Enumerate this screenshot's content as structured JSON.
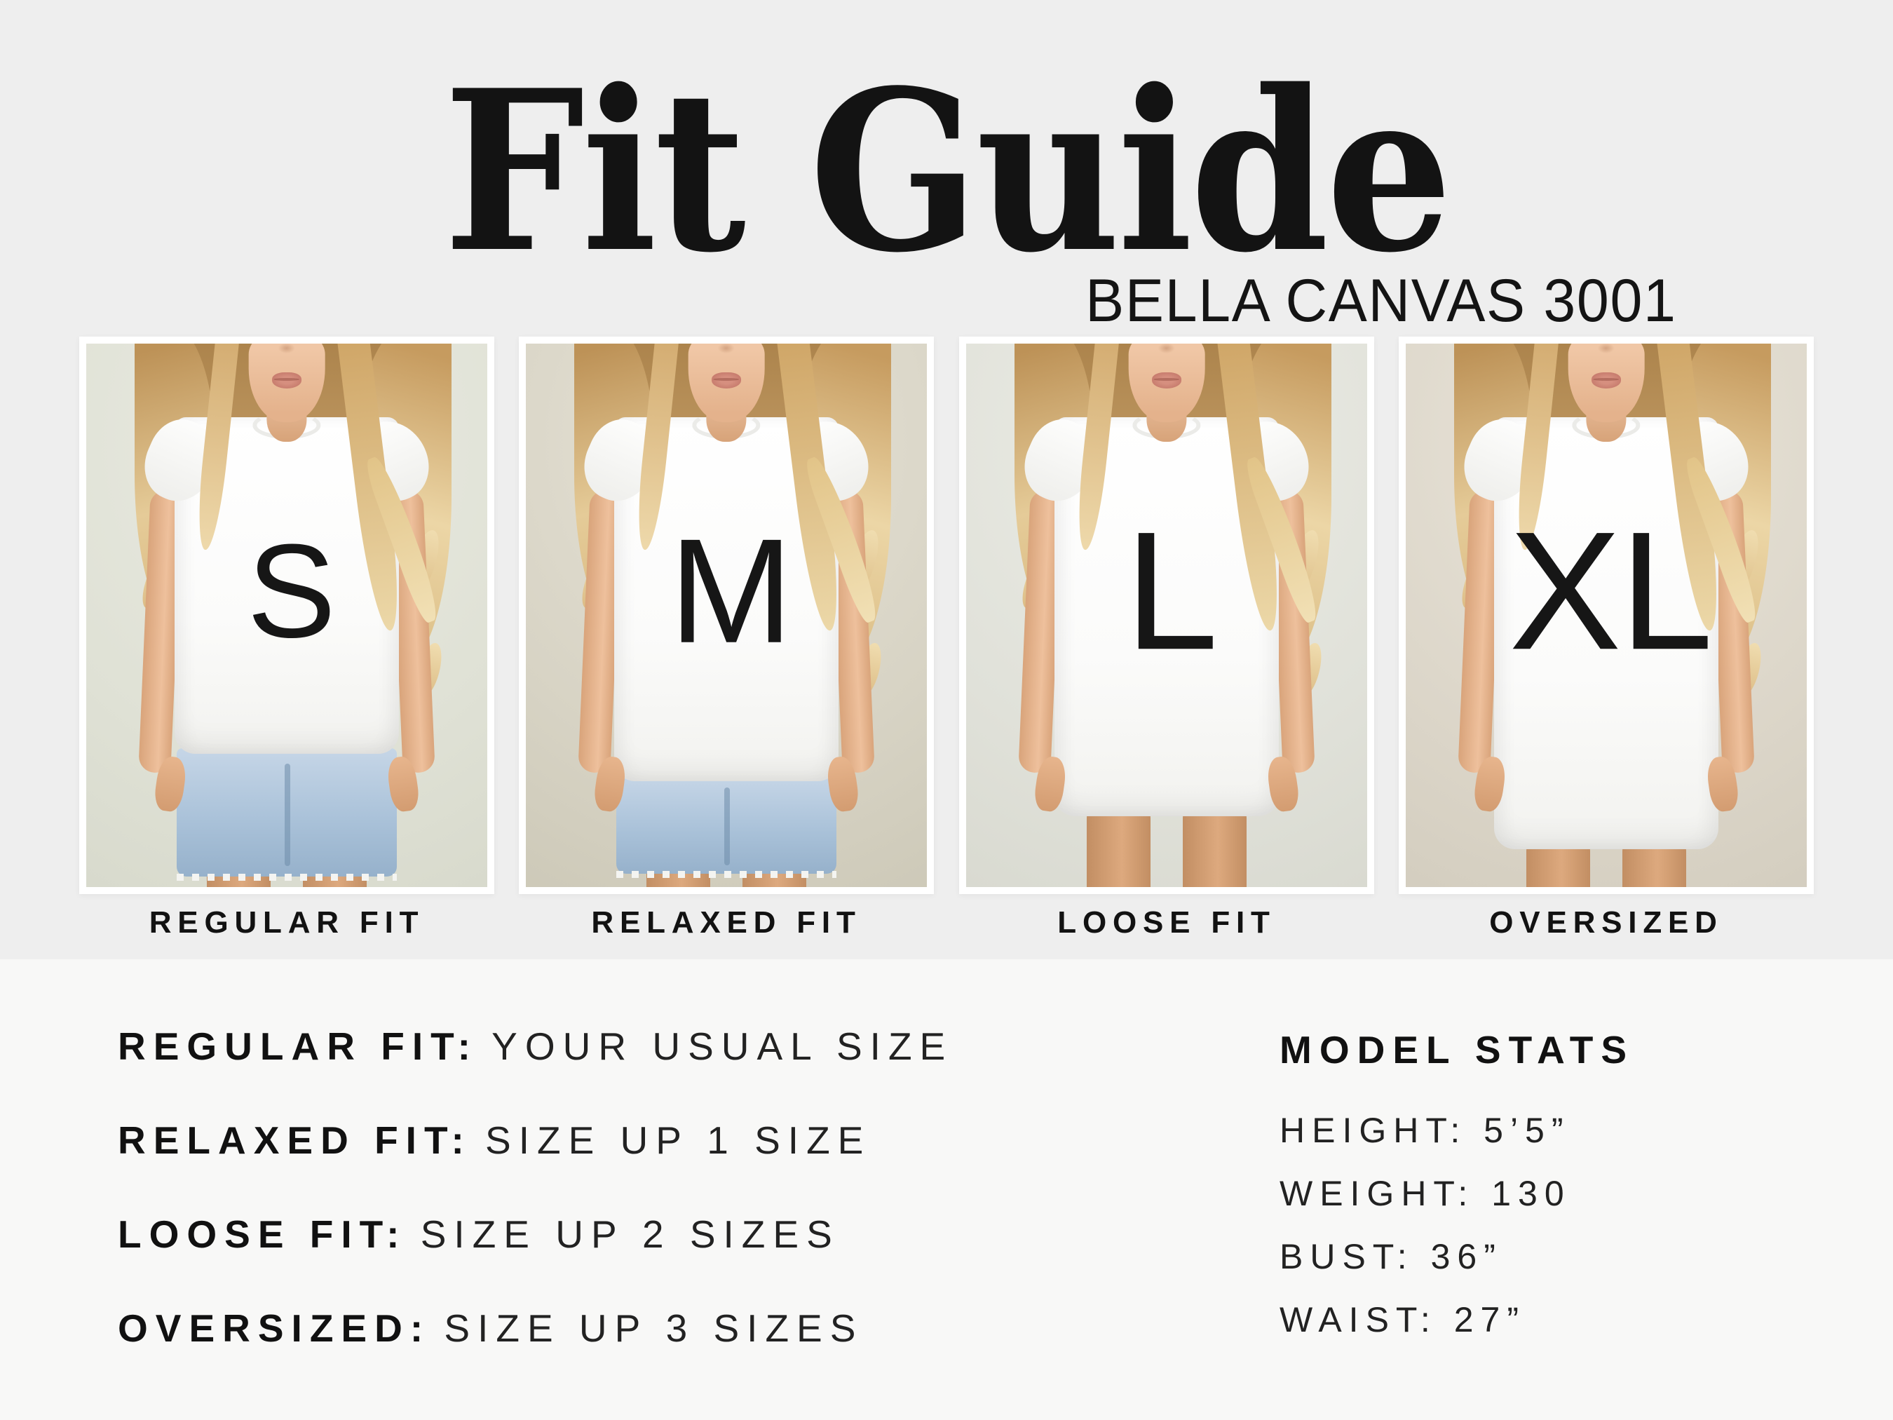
{
  "page": {
    "title": "Fit Guide",
    "subtitle": "BELLA CANVAS 3001"
  },
  "panels": [
    {
      "size_letter": "S",
      "fit_label": "REGULAR FIT"
    },
    {
      "size_letter": "M",
      "fit_label": "RELAXED FIT"
    },
    {
      "size_letter": "L",
      "fit_label": "LOOSE FIT"
    },
    {
      "size_letter": "XL",
      "fit_label": "OVERSIZED"
    }
  ],
  "fit_notes": [
    {
      "label": "REGULAR FIT:",
      "value": "YOUR USUAL SIZE"
    },
    {
      "label": "RELAXED FIT:",
      "value": "SIZE UP 1 SIZE"
    },
    {
      "label": "LOOSE FIT:",
      "value": "SIZE UP 2 SIZES"
    },
    {
      "label": "OVERSIZED:",
      "value": "SIZE UP 3 SIZES"
    }
  ],
  "model_stats": {
    "heading": "MODEL STATS",
    "rows": [
      "HEIGHT: 5’5”",
      "WEIGHT: 130",
      "BUST: 36”",
      "WAIST: 27”"
    ]
  },
  "colors": {
    "background_top": "#eeeeee",
    "background_bottom": "#f8f8f7",
    "ink": "#131313",
    "frame": "#ffffff",
    "denim": "#aac2d9",
    "hair": "#d9b87f",
    "skin": "#eabf9e"
  }
}
